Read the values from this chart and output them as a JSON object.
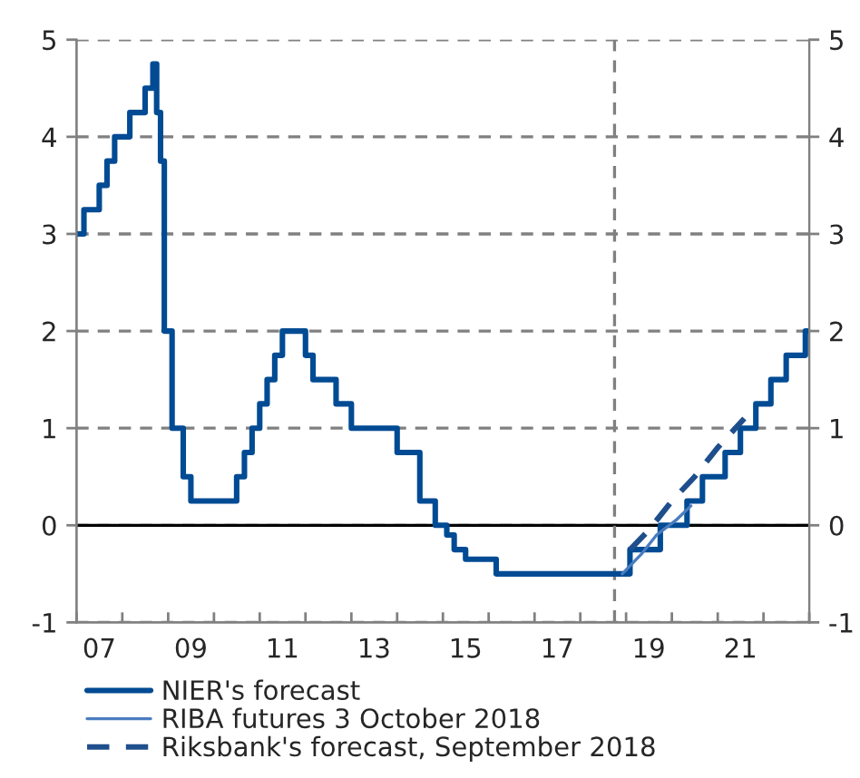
{
  "chart_data": {
    "type": "step",
    "xlim": [
      "2007-01",
      "2023-01"
    ],
    "xticks": [
      {
        "value": "2007",
        "label": null
      },
      {
        "value": "2007-07",
        "label": "07"
      },
      {
        "value": "2008",
        "label": null
      },
      {
        "value": "2009",
        "label": null
      },
      {
        "value": "2009-07",
        "label": "09"
      },
      {
        "value": "2010",
        "label": null
      },
      {
        "value": "2011",
        "label": null
      },
      {
        "value": "2011-07",
        "label": "11"
      },
      {
        "value": "2012",
        "label": null
      },
      {
        "value": "2013",
        "label": null
      },
      {
        "value": "2013-07",
        "label": "13"
      },
      {
        "value": "2014",
        "label": null
      },
      {
        "value": "2015",
        "label": null
      },
      {
        "value": "2015-07",
        "label": "15"
      },
      {
        "value": "2016",
        "label": null
      },
      {
        "value": "2017",
        "label": null
      },
      {
        "value": "2017-07",
        "label": "17"
      },
      {
        "value": "2018",
        "label": null
      },
      {
        "value": "2019",
        "label": null
      },
      {
        "value": "2019-07",
        "label": "19"
      },
      {
        "value": "2020",
        "label": null
      },
      {
        "value": "2021",
        "label": null
      },
      {
        "value": "2021-07",
        "label": "21"
      },
      {
        "value": "2022",
        "label": null
      },
      {
        "value": "2023",
        "label": null
      }
    ],
    "ylim": [
      -1,
      5
    ],
    "yticks": [
      -1,
      0,
      1,
      2,
      3,
      4,
      5
    ],
    "y2lim": [
      -1,
      5
    ],
    "y2ticks": [
      -1,
      0,
      1,
      2,
      3,
      4,
      5
    ],
    "grid": "y",
    "legend": "bottom",
    "ref_lines": [
      {
        "axis": "y",
        "value": 0,
        "color": "#000000",
        "line_style": "solid"
      },
      {
        "axis": "x",
        "value": "2018-10",
        "color": "#808080",
        "line_style": "dashed"
      }
    ],
    "series": [
      {
        "name": "NIER's forecast",
        "color": "#004b93",
        "line_style": "solid",
        "x": [
          "2007-01",
          "2007-03",
          "2007-07",
          "2007-09",
          "2007-11",
          "2008-03",
          "2008-07",
          "2008-09",
          "2008-10",
          "2008-11",
          "2008-12",
          "2009-02",
          "2009-05",
          "2009-07",
          "2010-07",
          "2010-09",
          "2010-11",
          "2011-01",
          "2011-03",
          "2011-05",
          "2011-07",
          "2012-01",
          "2012-03",
          "2012-09",
          "2013-01",
          "2014-01",
          "2014-07",
          "2014-11",
          "2015-02",
          "2015-04",
          "2015-07",
          "2016-03",
          "2019-02",
          "2019-10",
          "2020-05",
          "2020-09",
          "2021-03",
          "2021-07",
          "2021-11",
          "2022-03",
          "2022-07",
          "2022-12",
          "2023-01"
        ],
        "values": [
          3.0,
          3.25,
          3.5,
          3.75,
          4.0,
          4.25,
          4.5,
          4.75,
          4.25,
          3.75,
          2.0,
          1.0,
          0.5,
          0.25,
          0.5,
          0.75,
          1.0,
          1.25,
          1.5,
          1.75,
          2.0,
          1.75,
          1.5,
          1.25,
          1.0,
          0.75,
          0.25,
          0.0,
          -0.1,
          -0.25,
          -0.35,
          -0.5,
          -0.25,
          0.0,
          0.25,
          0.5,
          0.75,
          1.0,
          1.25,
          1.5,
          1.75,
          2.0,
          2.0
        ]
      },
      {
        "name": "RIBA futures 3 October 2018",
        "type": "line",
        "color": "#4a7cc0",
        "line_style": "solid",
        "x": [
          "2018-12",
          "2019-05",
          "2019-09",
          "2020-02",
          "2020-06"
        ],
        "values": [
          -0.5,
          -0.3,
          -0.1,
          0.05,
          0.2
        ]
      },
      {
        "name": "Riksbank's forecast, September 2018",
        "type": "line",
        "color": "#1f4e8c",
        "line_style": "dashed",
        "x": [
          "2019-02",
          "2019-07",
          "2020-01",
          "2020-07",
          "2021-01",
          "2021-08"
        ],
        "values": [
          -0.25,
          -0.05,
          0.25,
          0.5,
          0.8,
          1.1
        ]
      }
    ]
  }
}
